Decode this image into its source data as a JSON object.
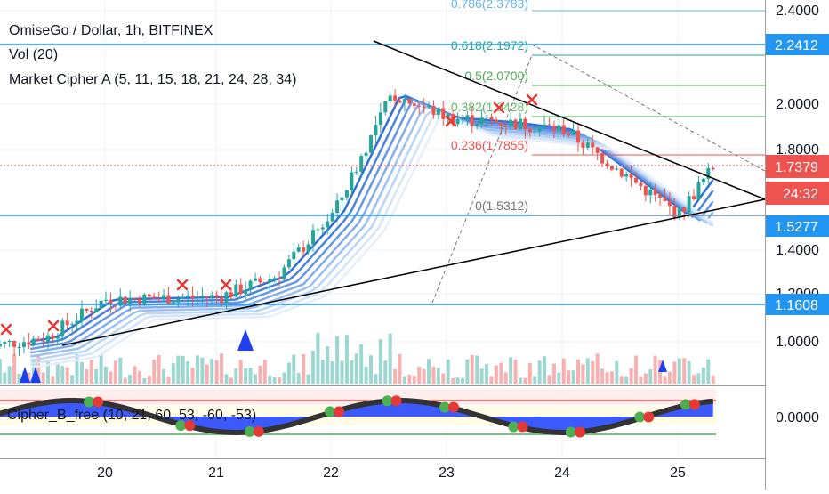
{
  "header": {
    "title": "OmiseGo / Dollar, 1h, BITFINEX",
    "vol": "Vol (20)",
    "indicator": "Market Cipher A (5, 11, 15, 18, 21, 24, 28, 34)",
    "subindicator": "Cipher_B_free (10, 21, 60, 53, -60, -53)"
  },
  "colors": {
    "up": "#26a69a",
    "down": "#ef5350",
    "ribbon": "#3d7ee0",
    "hline": "#2196f3",
    "price_tag": "#ef5350",
    "blue_tag": "#2196f3"
  },
  "price_labels": [
    "2.4000",
    "2.0000",
    "1.8000",
    "1.4000",
    "1.2000",
    "1.0000"
  ],
  "price_tags": {
    "current": "1.7379",
    "countdown": "24:32",
    "levels": [
      "2.2412",
      "1.5277",
      "1.1608"
    ]
  },
  "osc_label": "0.0000",
  "x_labels": [
    "20",
    "21",
    "22",
    "23",
    "24",
    "25"
  ],
  "fib_labels": [
    "0.786(2.3783)",
    "0.618(2.1972)",
    "0.5(2.0700)",
    "0.382(1.9428)",
    "0.236(1.7855)",
    "0(1.5312)"
  ],
  "chart_data": {
    "type": "candlestick",
    "title": "OmiseGo / Dollar, 1h, BITFINEX",
    "x_ticks": [
      "20",
      "21",
      "22",
      "23",
      "24",
      "25"
    ],
    "y_ticks": [
      1.0,
      1.2,
      1.4,
      1.8,
      2.0,
      2.4
    ],
    "ylim": [
      0.86,
      2.48
    ],
    "current_price": 1.7379,
    "horizontal_levels": [
      2.2412,
      1.5277,
      1.1608
    ],
    "fib_levels": [
      {
        "ratio": "0.786",
        "price": 2.3783
      },
      {
        "ratio": "0.618",
        "price": 2.1972
      },
      {
        "ratio": "0.5",
        "price": 2.07
      },
      {
        "ratio": "0.382",
        "price": 1.9428
      },
      {
        "ratio": "0.236",
        "price": 1.7855
      },
      {
        "ratio": "0",
        "price": 1.5312
      }
    ],
    "approx_close_path": [
      {
        "x": "19.0",
        "y": 0.98
      },
      {
        "x": "19.5",
        "y": 1.02
      },
      {
        "x": "20.0",
        "y": 1.18
      },
      {
        "x": "21.0",
        "y": 1.19
      },
      {
        "x": "21.5",
        "y": 1.28
      },
      {
        "x": "22.0",
        "y": 1.55
      },
      {
        "x": "22.3",
        "y": 1.85
      },
      {
        "x": "22.5",
        "y": 2.05
      },
      {
        "x": "23.0",
        "y": 1.95
      },
      {
        "x": "23.5",
        "y": 1.93
      },
      {
        "x": "24.0",
        "y": 1.9
      },
      {
        "x": "24.5",
        "y": 1.72
      },
      {
        "x": "25.0",
        "y": 1.54
      },
      {
        "x": "25.3",
        "y": 1.74
      }
    ]
  }
}
